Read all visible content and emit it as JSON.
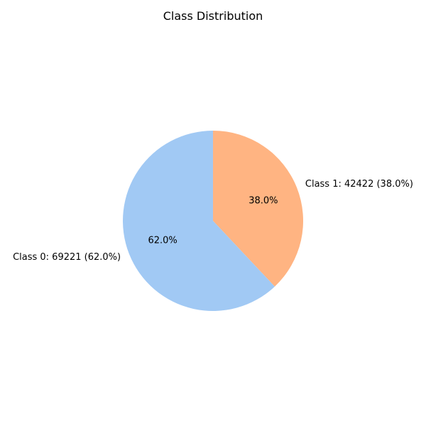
{
  "chart_data": {
    "type": "pie",
    "title": "Class Distribution",
    "slices": [
      {
        "label": "Class 1: 42422 (38.0%)",
        "value": 42422,
        "percent_label": "38.0%",
        "color": "#ffb482"
      },
      {
        "label": "Class 0: 69221 (62.0%)",
        "value": 69221,
        "percent_label": "62.0%",
        "color": "#a1c9f4"
      }
    ],
    "start_angle": "top",
    "direction": "clockwise",
    "legend": "none"
  }
}
